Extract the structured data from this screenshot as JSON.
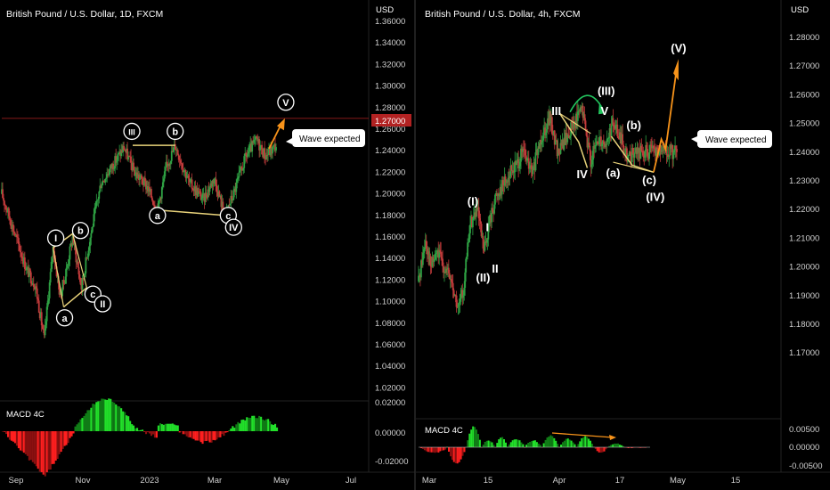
{
  "theme": {
    "background": "#000000",
    "up_color": "#26a69a",
    "candle_up": "#2ea043",
    "candle_down": "#c23b3b",
    "annotation_color": "#e8d27a",
    "projection_color": "#f7931a",
    "macd_bright_green": "#22e02a",
    "macd_dark_green": "#107c16",
    "macd_bright_red": "#ff1f1f",
    "macd_dark_red": "#8b1010",
    "price_badge_color": "#b22222",
    "text_color": "#ffffff",
    "axis_text_color": "#d0d0d0",
    "divider_color": "#2a2a2a"
  },
  "chart_data": [
    {
      "type": "candlestick",
      "title": "British Pound / U.S. Dollar, 1D, FXCM",
      "currency": "USD",
      "ylim": [
        1.02,
        1.37
      ],
      "y_ticks": [
        "1.36000",
        "1.34000",
        "1.32000",
        "1.30000",
        "1.28000",
        "1.26000",
        "1.24000",
        "1.22000",
        "1.20000",
        "1.18000",
        "1.16000",
        "1.14000",
        "1.12000",
        "1.10000",
        "1.08000",
        "1.06000",
        "1.04000",
        "1.02000"
      ],
      "x_ticks": [
        "Sep",
        "Nov",
        "2023",
        "Mar",
        "May",
        "Jul"
      ],
      "price_badge": "1.27000",
      "price_anchors": [
        {
          "t": 0,
          "p": 1.2
        },
        {
          "t": 12,
          "p": 1.17
        },
        {
          "t": 28,
          "p": 1.13
        },
        {
          "t": 38,
          "p": 1.115
        },
        {
          "t": 48,
          "p": 1.065
        },
        {
          "t": 52,
          "p": 1.1
        },
        {
          "t": 58,
          "p": 1.15
        },
        {
          "t": 66,
          "p": 1.105
        },
        {
          "t": 72,
          "p": 1.125
        },
        {
          "t": 80,
          "p": 1.16
        },
        {
          "t": 90,
          "p": 1.113
        },
        {
          "t": 100,
          "p": 1.16
        },
        {
          "t": 112,
          "p": 1.21
        },
        {
          "t": 124,
          "p": 1.225
        },
        {
          "t": 138,
          "p": 1.243
        },
        {
          "t": 150,
          "p": 1.22
        },
        {
          "t": 164,
          "p": 1.207
        },
        {
          "t": 176,
          "p": 1.185
        },
        {
          "t": 186,
          "p": 1.225
        },
        {
          "t": 196,
          "p": 1.245
        },
        {
          "t": 212,
          "p": 1.21
        },
        {
          "t": 228,
          "p": 1.195
        },
        {
          "t": 240,
          "p": 1.215
        },
        {
          "t": 252,
          "p": 1.18
        },
        {
          "t": 262,
          "p": 1.2
        },
        {
          "t": 276,
          "p": 1.235
        },
        {
          "t": 288,
          "p": 1.25
        },
        {
          "t": 298,
          "p": 1.235
        },
        {
          "t": 310,
          "p": 1.245
        }
      ],
      "annotations": [
        {
          "label": "I",
          "t": 61,
          "p": 1.159
        },
        {
          "label": "b",
          "t": 89,
          "p": 1.166
        },
        {
          "label": "c",
          "t": 103,
          "p": 1.107
        },
        {
          "label": "II",
          "t": 114,
          "p": 1.098
        },
        {
          "label": "a",
          "t": 71,
          "p": 1.085
        },
        {
          "label": "III",
          "t": 147,
          "p": 1.258
        },
        {
          "label": "b",
          "t": 196,
          "p": 1.258
        },
        {
          "label": "a",
          "t": 176,
          "p": 1.18
        },
        {
          "label": "c",
          "t": 256,
          "p": 1.18
        },
        {
          "label": "IV",
          "t": 262,
          "p": 1.169
        },
        {
          "label": "V",
          "t": 321,
          "p": 1.285
        }
      ],
      "wave_expected_label": "Wave expected",
      "macd_label": "MACD 4C",
      "macd_ticks": [
        "0.02000",
        "0.00000",
        "-0.02000"
      ]
    },
    {
      "type": "candlestick",
      "title": "British Pound / U.S. Dollar, 4h, FXCM",
      "currency": "USD",
      "ylim": [
        1.165,
        1.29
      ],
      "y_ticks": [
        "1.28000",
        "1.27000",
        "1.26000",
        "1.25000",
        "1.24000",
        "1.23000",
        "1.22000",
        "1.21000",
        "1.20000",
        "1.19000",
        "1.18000",
        "1.17000"
      ],
      "x_ticks": [
        "Mar",
        "15",
        "Apr",
        "17",
        "May",
        "15"
      ],
      "price_anchors": [
        {
          "t": 0,
          "p": 1.195
        },
        {
          "t": 8,
          "p": 1.21
        },
        {
          "t": 14,
          "p": 1.2
        },
        {
          "t": 22,
          "p": 1.205
        },
        {
          "t": 30,
          "p": 1.2
        },
        {
          "t": 38,
          "p": 1.195
        },
        {
          "t": 46,
          "p": 1.185
        },
        {
          "t": 52,
          "p": 1.192
        },
        {
          "t": 60,
          "p": 1.215
        },
        {
          "t": 68,
          "p": 1.22
        },
        {
          "t": 76,
          "p": 1.205
        },
        {
          "t": 82,
          "p": 1.215
        },
        {
          "t": 90,
          "p": 1.225
        },
        {
          "t": 100,
          "p": 1.23
        },
        {
          "t": 112,
          "p": 1.235
        },
        {
          "t": 122,
          "p": 1.24
        },
        {
          "t": 132,
          "p": 1.232
        },
        {
          "t": 142,
          "p": 1.245
        },
        {
          "t": 152,
          "p": 1.252
        },
        {
          "t": 162,
          "p": 1.24
        },
        {
          "t": 172,
          "p": 1.245
        },
        {
          "t": 180,
          "p": 1.25
        },
        {
          "t": 190,
          "p": 1.255
        },
        {
          "t": 200,
          "p": 1.237
        },
        {
          "t": 210,
          "p": 1.245
        },
        {
          "t": 218,
          "p": 1.243
        },
        {
          "t": 226,
          "p": 1.25
        },
        {
          "t": 234,
          "p": 1.245
        },
        {
          "t": 244,
          "p": 1.238
        },
        {
          "t": 252,
          "p": 1.24
        }
      ],
      "annotations": [
        {
          "label": "(I)",
          "t": 63,
          "p": 1.223
        },
        {
          "label": "I",
          "t": 80,
          "p": 1.214
        },
        {
          "label": "II",
          "t": 89,
          "p": 1.1995
        },
        {
          "label": "(II)",
          "t": 75,
          "p": 1.1965
        },
        {
          "label": "III",
          "t": 160,
          "p": 1.2545
        },
        {
          "label": "(III)",
          "t": 218,
          "p": 1.2615
        },
        {
          "label": "V",
          "t": 216,
          "p": 1.2545
        },
        {
          "label": "IV",
          "t": 190,
          "p": 1.2325
        },
        {
          "label": "(b)",
          "t": 250,
          "p": 1.2495
        },
        {
          "label": "(a)",
          "t": 226,
          "p": 1.233
        },
        {
          "label": "(c)",
          "t": 268,
          "p": 1.2305
        },
        {
          "label": "(IV)",
          "t": 275,
          "p": 1.2245
        },
        {
          "label": "(V)",
          "t": 302,
          "p": 1.2765
        }
      ],
      "wave_expected_label": "Wave expected",
      "macd_label": "MACD 4C",
      "macd_ticks": [
        "0.00500",
        "0.00000",
        "-0.00500"
      ]
    }
  ]
}
